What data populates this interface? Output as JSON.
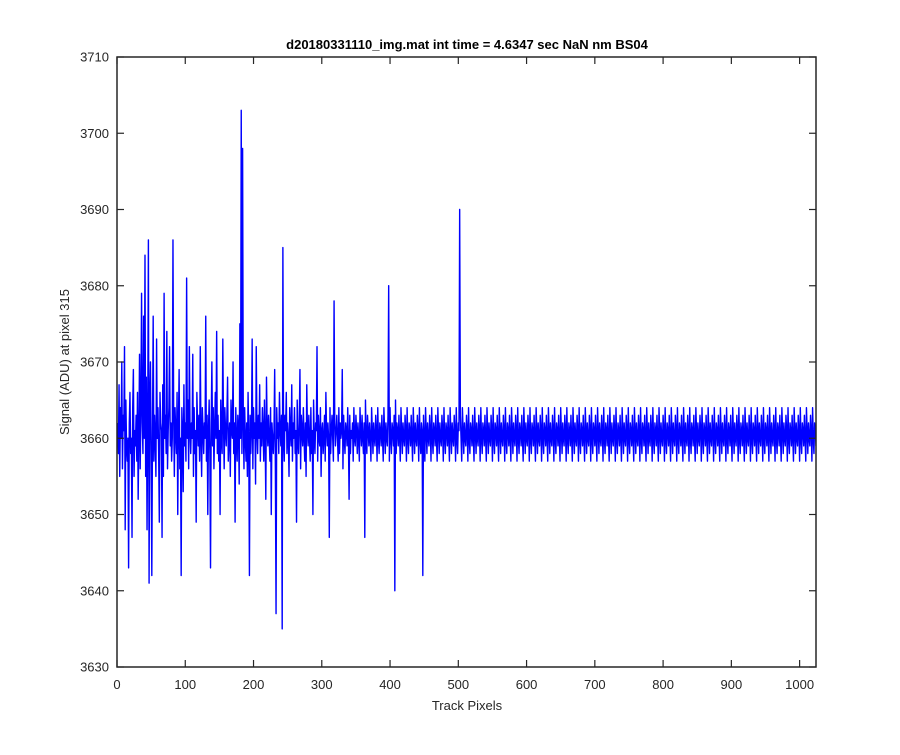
{
  "chart_data": {
    "type": "line",
    "title": "d20180331110_img.mat int time = 4.6347 sec  NaN nm BS04",
    "xlabel": "Track Pixels",
    "ylabel": "Signal (ADU) at pixel 315",
    "xlim": [
      0,
      1024
    ],
    "ylim": [
      3630,
      3710
    ],
    "xticks": [
      0,
      100,
      200,
      300,
      400,
      500,
      600,
      700,
      800,
      900,
      1000
    ],
    "yticks": [
      3630,
      3640,
      3650,
      3660,
      3670,
      3680,
      3690,
      3700,
      3710
    ],
    "grid": false,
    "line_color": "#0000ff",
    "series": [
      {
        "x_start": 1,
        "x_step": 1,
        "values": [
          3662,
          3658,
          3667,
          3655,
          3664,
          3660,
          3670,
          3656,
          3663,
          3661,
          3672,
          3648,
          3665,
          3659,
          3657,
          3660,
          3643,
          3662,
          3666,
          3658,
          3660,
          3647,
          3664,
          3669,
          3655,
          3661,
          3659,
          3663,
          3657,
          3666,
          3652,
          3660,
          3671,
          3656,
          3664,
          3679,
          3662,
          3658,
          3676,
          3660,
          3684,
          3655,
          3668,
          3648,
          3662,
          3686,
          3641,
          3665,
          3670,
          3658,
          3642,
          3661,
          3676,
          3657,
          3663,
          3660,
          3655,
          3673,
          3660,
          3664,
          3658,
          3649,
          3666,
          3662,
          3661,
          3647,
          3667,
          3655,
          3679,
          3660,
          3663,
          3658,
          3674,
          3656,
          3661,
          3664,
          3672,
          3659,
          3662,
          3657,
          3660,
          3686,
          3663,
          3655,
          3664,
          3661,
          3658,
          3666,
          3650,
          3662,
          3669,
          3656,
          3660,
          3642,
          3664,
          3661,
          3653,
          3667,
          3659,
          3662,
          3657,
          3681,
          3660,
          3665,
          3656,
          3672,
          3661,
          3658,
          3662,
          3660,
          3671,
          3655,
          3664,
          3658,
          3661,
          3649,
          3666,
          3662,
          3659,
          3663,
          3657,
          3672,
          3660,
          3655,
          3664,
          3661,
          3658,
          3662,
          3660,
          3676,
          3657,
          3663,
          3650,
          3661,
          3665,
          3658,
          3643,
          3662,
          3670,
          3659,
          3664,
          3656,
          3661,
          3666,
          3660,
          3674,
          3658,
          3663,
          3657,
          3661,
          3650,
          3665,
          3660,
          3658,
          3673,
          3662,
          3656,
          3664,
          3661,
          3659,
          3663,
          3668,
          3657,
          3660,
          3662,
          3655,
          3665,
          3661,
          3660,
          3670,
          3658,
          3662,
          3649,
          3664,
          3660,
          3657,
          3663,
          3661,
          3654,
          3675,
          3660,
          3703,
          3658,
          3698,
          3662,
          3656,
          3664,
          3660,
          3657,
          3662,
          3655,
          3666,
          3660,
          3642,
          3663,
          3658,
          3661,
          3673,
          3656,
          3664,
          3660,
          3662,
          3654,
          3672,
          3661,
          3658,
          3663,
          3660,
          3667,
          3657,
          3662,
          3659,
          3664,
          3661,
          3657,
          3665,
          3660,
          3652,
          3668,
          3661,
          3659,
          3663,
          3660,
          3657,
          3664,
          3650,
          3662,
          3660,
          3658,
          3661,
          3669,
          3656,
          3637,
          3664,
          3660,
          3662,
          3658,
          3666,
          3661,
          3659,
          3663,
          3635,
          3685,
          3660,
          3657,
          3663,
          3661,
          3666,
          3658,
          3662,
          3660,
          3655,
          3664,
          3661,
          3659,
          3667,
          3657,
          3662,
          3660,
          3664,
          3658,
          3661,
          3649,
          3665,
          3660,
          3658,
          3662,
          3669,
          3656,
          3663,
          3661,
          3659,
          3664,
          3660,
          3657,
          3662,
          3655,
          3667,
          3661,
          3659,
          3663,
          3660,
          3657,
          3664,
          3658,
          3661,
          3650,
          3665,
          3660,
          3658,
          3662,
          3661,
          3672,
          3657,
          3663,
          3660,
          3659,
          3664,
          3655,
          3661,
          3662,
          3658,
          3660,
          3663,
          3657,
          3666,
          3661,
          3659,
          3662,
          3660,
          3647,
          3664,
          3658,
          3661,
          3663,
          3660,
          3657,
          3678,
          3662,
          3659,
          3661,
          3663,
          3660,
          3657,
          3664,
          3658,
          3662,
          3660,
          3661,
          3669,
          3656,
          3663,
          3660,
          3658,
          3662,
          3661,
          3659,
          3664,
          3660,
          3652,
          3663,
          3658,
          3661,
          3660,
          3662,
          3657,
          3664,
          3660,
          3659,
          3663,
          3661,
          3658,
          3662,
          3660,
          3657,
          3664,
          3661,
          3659,
          3663,
          3660,
          3658,
          3662,
          3647,
          3665,
          3660,
          3658,
          3663,
          3661,
          3659,
          3662,
          3660,
          3657,
          3664,
          3661,
          3658,
          3662,
          3660,
          3659,
          3663,
          3661,
          3657,
          3664,
          3660,
          3658,
          3662,
          3661,
          3659,
          3663,
          3660,
          3657,
          3664,
          3661,
          3658,
          3662,
          3660,
          3659,
          3663,
          3680,
          3657,
          3664,
          3660,
          3658,
          3662,
          3661,
          3659,
          3663,
          3640,
          3665,
          3658,
          3662,
          3661,
          3659,
          3663,
          3660,
          3657,
          3664,
          3661,
          3658,
          3662,
          3660,
          3659,
          3663,
          3661,
          3657,
          3664,
          3660,
          3658,
          3662,
          3661,
          3659,
          3663,
          3660,
          3657,
          3664,
          3661,
          3658,
          3662,
          3660,
          3659,
          3663,
          3661,
          3657,
          3664,
          3660,
          3658,
          3662,
          3661,
          3642,
          3663,
          3660,
          3657,
          3664,
          3661,
          3658,
          3662,
          3660,
          3659,
          3663,
          3661,
          3657,
          3664,
          3660,
          3658,
          3662,
          3661,
          3659,
          3663,
          3660,
          3657,
          3664,
          3661,
          3658,
          3662,
          3660,
          3659,
          3663,
          3661,
          3657,
          3664,
          3660,
          3658,
          3662,
          3661,
          3659,
          3663,
          3660,
          3657,
          3664,
          3661,
          3658,
          3662,
          3660,
          3659,
          3663,
          3661,
          3657,
          3664,
          3660,
          3658,
          3662,
          3661,
          3690,
          3663,
          3660,
          3657,
          3664,
          3661,
          3658,
          3662,
          3660,
          3659,
          3663,
          3661,
          3657,
          3664,
          3660,
          3658,
          3662,
          3661,
          3659,
          3663,
          3660,
          3657,
          3664,
          3661,
          3658,
          3662,
          3660,
          3659,
          3663,
          3661,
          3657,
          3664,
          3660,
          3658,
          3662,
          3661,
          3659,
          3663,
          3660,
          3657,
          3664,
          3661,
          3658,
          3662,
          3660,
          3659,
          3663,
          3661,
          3657,
          3664,
          3660,
          3658,
          3662,
          3661,
          3659,
          3663,
          3660,
          3657,
          3664,
          3661,
          3658,
          3662,
          3660,
          3659,
          3663,
          3661,
          3657,
          3664,
          3660,
          3658,
          3662,
          3661,
          3659,
          3663,
          3660,
          3657,
          3664,
          3661,
          3658,
          3662,
          3660,
          3659,
          3663,
          3661,
          3657,
          3664,
          3660,
          3658,
          3662,
          3661,
          3659,
          3663,
          3660,
          3657,
          3664,
          3661,
          3658,
          3662,
          3660,
          3659,
          3663,
          3661,
          3657,
          3664,
          3660,
          3658,
          3662,
          3661,
          3659,
          3663,
          3660,
          3657,
          3664,
          3661,
          3658,
          3662,
          3660,
          3659,
          3663,
          3661,
          3657,
          3664,
          3660,
          3658,
          3662,
          3661,
          3659,
          3663,
          3660,
          3657,
          3664,
          3661,
          3658,
          3662,
          3660,
          3659,
          3663,
          3661,
          3657,
          3664,
          3660,
          3658,
          3662,
          3661,
          3659,
          3663,
          3660,
          3657,
          3664,
          3661,
          3658,
          3662,
          3660,
          3659,
          3663,
          3661,
          3657,
          3664,
          3660,
          3658,
          3662,
          3661,
          3659,
          3663,
          3660,
          3657,
          3664,
          3661,
          3658,
          3662,
          3660,
          3659,
          3663,
          3661,
          3657,
          3664,
          3660,
          3658,
          3662,
          3661,
          3659,
          3663,
          3660,
          3657,
          3664,
          3661,
          3658,
          3662,
          3660,
          3659,
          3663,
          3661,
          3657,
          3664,
          3660,
          3658,
          3662,
          3661,
          3659,
          3663,
          3660,
          3657,
          3664,
          3661,
          3658,
          3662,
          3660,
          3659,
          3663,
          3661,
          3657,
          3664,
          3660,
          3658,
          3662,
          3661,
          3659,
          3663,
          3660,
          3657,
          3664,
          3661,
          3658,
          3662,
          3660,
          3659,
          3663,
          3661,
          3657,
          3664,
          3660,
          3658,
          3662,
          3661,
          3659,
          3663,
          3660,
          3657,
          3664,
          3661,
          3658,
          3662,
          3660,
          3659,
          3663,
          3661,
          3657,
          3664,
          3660,
          3658,
          3662,
          3661,
          3659,
          3663,
          3660,
          3657,
          3664,
          3661,
          3658,
          3662,
          3660,
          3659,
          3663,
          3661,
          3657,
          3664,
          3660,
          3658,
          3662,
          3661,
          3659,
          3663,
          3660,
          3657,
          3664,
          3661,
          3658,
          3662,
          3660,
          3659,
          3663,
          3661,
          3657,
          3664,
          3660,
          3658,
          3662,
          3661,
          3659,
          3663,
          3660,
          3657,
          3664,
          3661,
          3658,
          3662,
          3660,
          3659,
          3663,
          3661,
          3657,
          3664,
          3660,
          3658,
          3662,
          3661,
          3659,
          3663,
          3660,
          3657,
          3664,
          3661,
          3658,
          3662,
          3660,
          3659,
          3663,
          3661,
          3657,
          3664,
          3660,
          3658,
          3662,
          3661,
          3659,
          3663,
          3660,
          3657,
          3664,
          3661,
          3658,
          3662,
          3660,
          3659,
          3663,
          3661,
          3657,
          3664,
          3660,
          3658,
          3662,
          3661,
          3659,
          3663,
          3660,
          3657,
          3664,
          3661,
          3658,
          3662,
          3660,
          3659,
          3663,
          3661,
          3657,
          3664,
          3660,
          3658,
          3662,
          3661,
          3659,
          3663,
          3660,
          3657,
          3664,
          3661,
          3658,
          3662,
          3660,
          3659,
          3663,
          3661,
          3657,
          3664,
          3660,
          3658,
          3662,
          3661,
          3659,
          3663,
          3660,
          3657,
          3664,
          3661,
          3658,
          3662,
          3660,
          3659,
          3663,
          3661,
          3657,
          3664,
          3660,
          3658,
          3662,
          3661,
          3659,
          3663,
          3660,
          3657,
          3664,
          3661,
          3658,
          3662,
          3660,
          3659,
          3663,
          3661,
          3657,
          3664,
          3660,
          3658,
          3662,
          3661,
          3659,
          3663,
          3660,
          3657,
          3664,
          3661,
          3658,
          3662,
          3660,
          3659,
          3663,
          3661,
          3657,
          3664,
          3660,
          3658,
          3662,
          3661,
          3659,
          3663,
          3660,
          3657,
          3664,
          3661,
          3658,
          3662,
          3660,
          3659,
          3663,
          3661,
          3657,
          3664,
          3660,
          3658,
          3662,
          3661,
          3659,
          3663,
          3660,
          3657,
          3664,
          3661,
          3658,
          3662,
          3660,
          3659,
          3663,
          3661,
          3657,
          3664,
          3660,
          3658,
          3662,
          3661,
          3659,
          3663,
          3660,
          3657,
          3664,
          3661,
          3658,
          3662,
          3660,
          3659,
          3663,
          3661,
          3657,
          3664,
          3660,
          3658,
          3662,
          3661,
          3659,
          3663,
          3660,
          3657,
          3664,
          3661,
          3658,
          3662,
          3660,
          3659,
          3663,
          3661,
          3657,
          3664,
          3660,
          3658,
          3662,
          3661,
          3659,
          3663,
          3660,
          3657,
          3664,
          3661,
          3658,
          3662,
          3660,
          3659,
          3663,
          3661,
          3657,
          3664,
          3660,
          3658,
          3662,
          3661,
          3659,
          3663,
          3660,
          3657,
          3664,
          3661,
          3658,
          3662,
          3660,
          3659,
          3663,
          3661,
          3657,
          3664,
          3660,
          3658,
          3662,
          3661,
          3659,
          3663,
          3660,
          3657,
          3664,
          3661,
          3658,
          3662,
          3660,
          3659,
          3663,
          3661,
          3657,
          3664,
          3660,
          3658,
          3662,
          3661,
          3659,
          3663,
          3660,
          3657,
          3664,
          3661,
          3658,
          3662,
          3660,
          3659,
          3663,
          3661,
          3657,
          3664,
          3660,
          3658,
          3662,
          3661,
          3659,
          3663,
          3660,
          3657,
          3664,
          3661,
          3658,
          3662,
          3660,
          3659,
          3663,
          3661,
          3657,
          3664,
          3660,
          3658,
          3662,
          3661,
          3659,
          3663,
          3660,
          3657,
          3664,
          3661,
          3658
        ]
      }
    ]
  }
}
